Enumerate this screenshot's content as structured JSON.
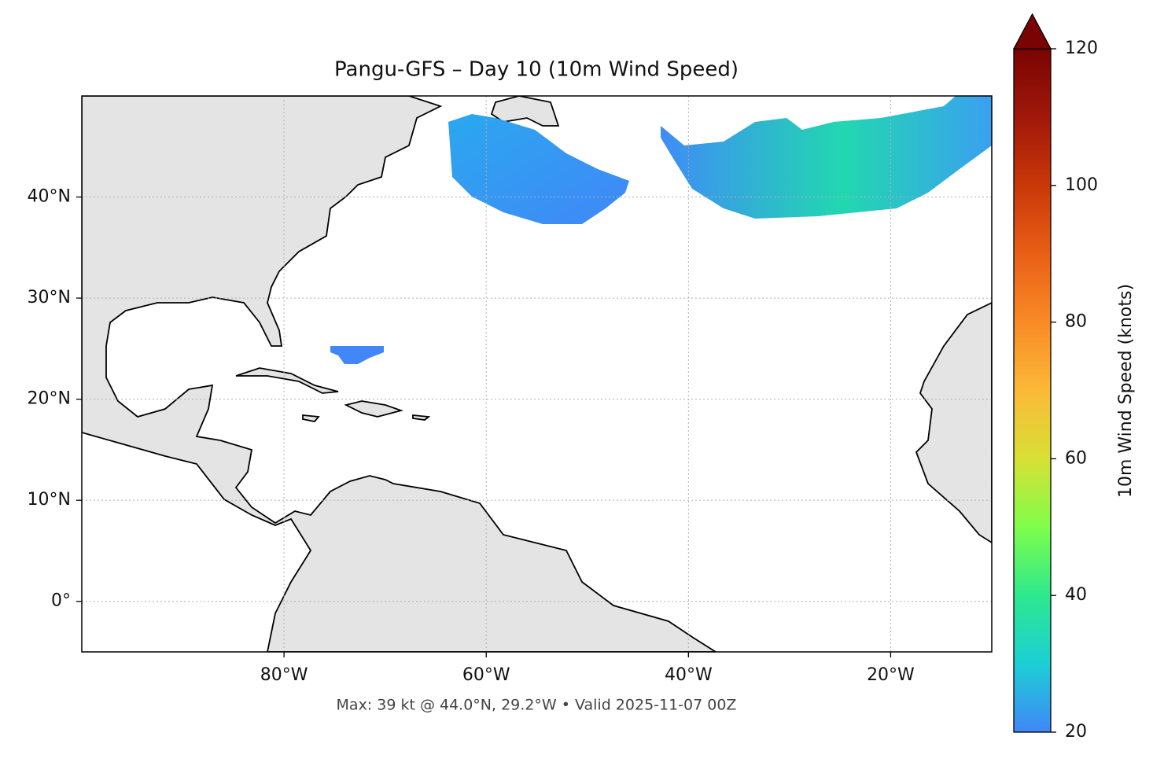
{
  "chart_data": {
    "type": "map",
    "title": "Pangu-GFS – Day 10 (10m Wind Speed)",
    "footer": "Max: 39 kt @ 44.0°N, 29.2°W • Valid 2025-11-07 00Z",
    "xlim": [
      -100,
      -10
    ],
    "ylim": [
      -5,
      50
    ],
    "xticks": [
      {
        "value": -80,
        "label": "80°W"
      },
      {
        "value": -60,
        "label": "60°W"
      },
      {
        "value": -40,
        "label": "40°W"
      },
      {
        "value": -20,
        "label": "20°W"
      }
    ],
    "yticks": [
      {
        "value": 0,
        "label": "0°"
      },
      {
        "value": 10,
        "label": "10°N"
      },
      {
        "value": 20,
        "label": "20°N"
      },
      {
        "value": 30,
        "label": "30°N"
      },
      {
        "value": 40,
        "label": "40°N"
      }
    ],
    "grid": true,
    "colorbar": {
      "label": "10m Wind Speed (knots)",
      "ylim": [
        20,
        120
      ],
      "yticks": [
        20,
        40,
        60,
        80,
        100,
        120
      ],
      "colors": [
        "#4187f8",
        "#1bcfd4",
        "#2ee88e",
        "#7ffe4a",
        "#d8e035",
        "#fbb938",
        "#f98a26",
        "#e95f16",
        "#c93808",
        "#a0180a",
        "#7a0403"
      ]
    }
  }
}
